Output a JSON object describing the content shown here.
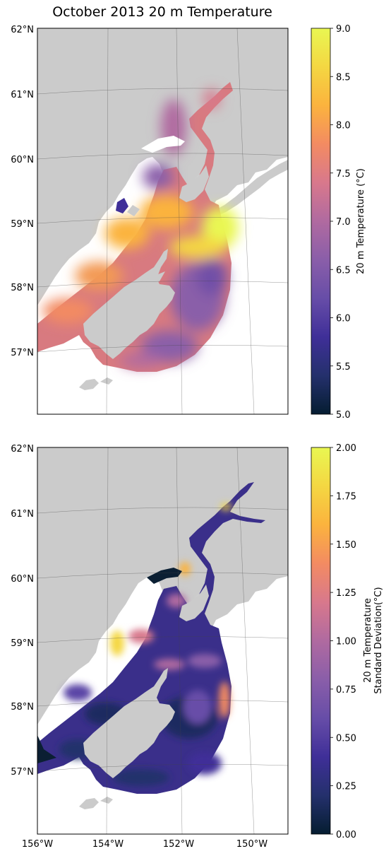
{
  "title": "October 2013 20 m Temperature",
  "colors": {
    "land": "#cbcbcb",
    "water": "#ffffff",
    "colormap": [
      "#051d31",
      "#24306c",
      "#3f2f98",
      "#674da8",
      "#8a5ea9",
      "#b06aa0",
      "#d8788c",
      "#f38b62",
      "#fbb33e",
      "#f4d742",
      "#e9f752"
    ]
  },
  "chart_data": [
    {
      "type": "heatmap",
      "subject": "map",
      "xlabel": "",
      "ylabel": "",
      "xlim": [
        -156,
        -149
      ],
      "ylim": [
        56,
        62
      ],
      "x_ticks": [],
      "y_ticks": [
        "57°N",
        "58°N",
        "59°N",
        "60°N",
        "61°N",
        "62°N"
      ],
      "colorbar": {
        "label": "20 m Temperature (°C)",
        "range": [
          5.0,
          9.0
        ],
        "ticks": [
          "5.0",
          "5.5",
          "6.0",
          "6.5",
          "7.0",
          "7.5",
          "8.0",
          "8.5",
          "9.0"
        ]
      },
      "field_dominant_range": [
        6.0,
        9.0
      ],
      "grid": true
    },
    {
      "type": "heatmap",
      "subject": "map",
      "xlabel": "",
      "ylabel": "",
      "xlim": [
        -156,
        -149
      ],
      "ylim": [
        56,
        62
      ],
      "x_ticks": [
        "156°W",
        "154°W",
        "152°W",
        "150°W"
      ],
      "y_ticks": [
        "57°N",
        "58°N",
        "59°N",
        "60°N",
        "61°N",
        "62°N"
      ],
      "colorbar": {
        "label_lines": [
          "20 m Temperature",
          "Standard Deviation(°C)"
        ],
        "range": [
          0.0,
          2.0
        ],
        "ticks": [
          "0.00",
          "0.25",
          "0.50",
          "0.75",
          "1.00",
          "1.25",
          "1.50",
          "1.75",
          "2.00"
        ]
      },
      "field_dominant_range": [
        0.1,
        1.0
      ],
      "grid": true
    }
  ]
}
